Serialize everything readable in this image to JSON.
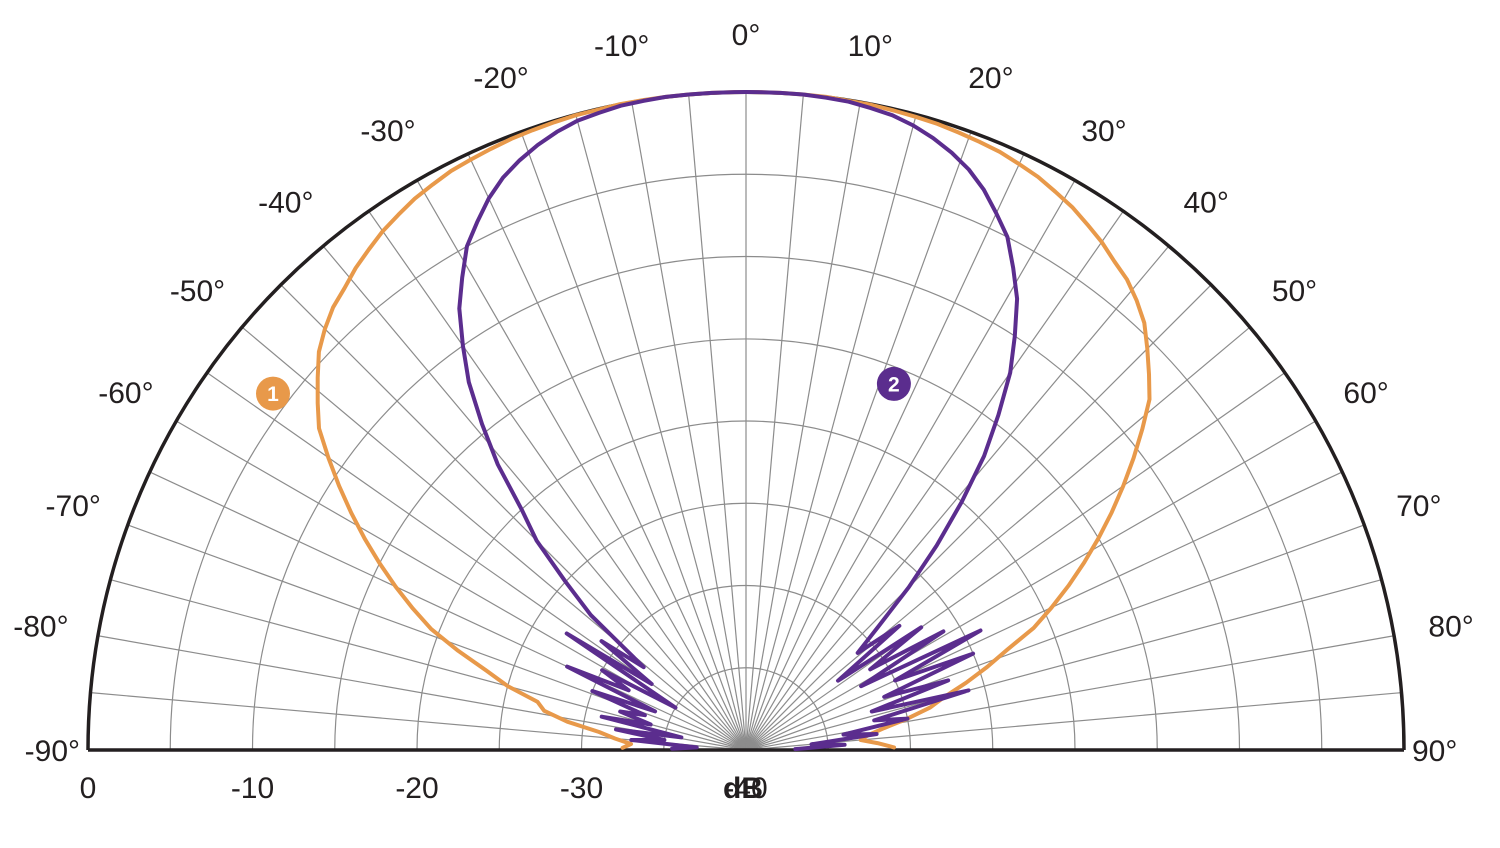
{
  "chart_data": {
    "type": "polar",
    "subtype": "half-polar directivity pattern",
    "radial_unit": "dB",
    "radial_range": [
      -40,
      0
    ],
    "radial_step": 5,
    "angle_range": [
      -90,
      90
    ],
    "angle_step": 10,
    "angle_ticks": [
      "-90°",
      "-80°",
      "-70°",
      "-60°",
      "-50°",
      "-40°",
      "-30°",
      "-20°",
      "-10°",
      "0°",
      "10°",
      "20°",
      "30°",
      "40°",
      "50°",
      "60°",
      "70°",
      "80°",
      "90°"
    ],
    "db_ticks_left": [
      "0",
      "-10",
      "-20",
      "-30",
      "-40"
    ],
    "unit_text": "dB",
    "colors": {
      "frame": "#231f20",
      "grid": "#8c8c8c",
      "series_1": "#e8994a",
      "series_2": "#5b2d8e"
    },
    "series": [
      {
        "name": "1",
        "color": "#e8994a",
        "angles": [
          -89,
          -87,
          -85,
          -83,
          -81,
          -79,
          -77,
          -75,
          -73,
          -71,
          -69,
          -67,
          -65,
          -63,
          -61,
          -59,
          -57,
          -55,
          -53,
          -51,
          -49,
          -47,
          -45,
          -43,
          -41,
          -39,
          -37,
          -35,
          -33,
          -31,
          -29,
          -27,
          -25,
          -23,
          -21,
          -19,
          -17,
          -15,
          -13,
          -11,
          -9,
          -7,
          -5,
          -3,
          -1,
          0,
          1,
          3,
          5,
          7,
          9,
          11,
          13,
          15,
          17,
          19,
          21,
          23,
          25,
          27,
          29,
          31,
          33,
          35,
          37,
          39,
          41,
          43,
          45,
          47,
          49,
          51,
          53,
          55,
          57,
          59,
          61,
          63,
          65,
          67,
          69,
          71,
          73,
          75,
          77,
          79,
          81,
          83,
          85,
          87,
          89
        ],
        "values": [
          -32.5,
          -33,
          -32,
          -31,
          -29,
          -27.5,
          -27,
          -25,
          -23.5,
          -21.5,
          -19.5,
          -18,
          -16.5,
          -15,
          -13.5,
          -12,
          -10.5,
          -9,
          -7.5,
          -6.5,
          -5.5,
          -4.5,
          -3.8,
          -3.2,
          -2.8,
          -2.3,
          -1.9,
          -1.5,
          -1.2,
          -0.9,
          -0.7,
          -0.5,
          -0.4,
          -0.3,
          -0.2,
          -0.15,
          -0.1,
          -0.05,
          -0.05,
          0,
          0,
          0,
          0,
          0,
          0,
          0,
          0,
          0,
          0,
          0,
          -0.05,
          -0.05,
          -0.1,
          -0.15,
          -0.2,
          -0.3,
          -0.4,
          -0.5,
          -0.7,
          -0.9,
          -1.2,
          -1.5,
          -1.9,
          -2.3,
          -2.8,
          -3.2,
          -3.8,
          -4.5,
          -5.5,
          -6.5,
          -7.5,
          -9,
          -10.5,
          -12,
          -13.5,
          -15,
          -16.5,
          -18,
          -19.5,
          -21,
          -23,
          -24.5,
          -26,
          -27.5,
          -28.5,
          -30,
          -31.5,
          -32.5,
          -33,
          -32,
          -31
        ]
      },
      {
        "name": "2",
        "color": "#5b2d8e",
        "angles": [
          -89,
          -87,
          -85,
          -83,
          -81,
          -79,
          -77,
          -75,
          -73,
          -71,
          -69,
          -67,
          -65,
          -63,
          -61,
          -59,
          -57,
          -55,
          -53,
          -51,
          -49,
          -47,
          -45,
          -43,
          -41,
          -39,
          -37,
          -35,
          -33,
          -31,
          -29,
          -27,
          -25,
          -23,
          -21,
          -19,
          -17,
          -15,
          -13,
          -11,
          -9,
          -7,
          -5,
          -3,
          -1,
          0,
          1,
          3,
          5,
          7,
          9,
          11,
          13,
          15,
          17,
          19,
          21,
          23,
          25,
          27,
          29,
          31,
          33,
          35,
          37,
          39,
          41,
          43,
          45,
          47,
          49,
          51,
          53,
          55,
          57,
          59,
          61,
          63,
          65,
          67,
          69,
          71,
          73,
          75,
          77,
          79,
          81,
          83,
          85,
          87,
          89
        ],
        "values": [
          -35.5,
          -37,
          -33,
          -35,
          -32,
          -36,
          -31,
          -34,
          -32,
          -33.5,
          -30,
          -34,
          -28,
          -32,
          -30,
          -35,
          -27,
          -33,
          -29,
          -32,
          -27.5,
          -25,
          -22,
          -20,
          -17,
          -14.5,
          -12,
          -10,
          -8,
          -6.5,
          -5,
          -4,
          -3,
          -2.2,
          -1.6,
          -1.1,
          -0.7,
          -0.4,
          -0.25,
          -0.1,
          -0.05,
          0,
          0,
          0,
          0,
          0,
          0,
          0,
          0,
          -0.05,
          -0.1,
          -0.25,
          -0.4,
          -0.7,
          -1.1,
          -1.6,
          -2.2,
          -3,
          -4,
          -5,
          -6.5,
          -8,
          -10,
          -12,
          -14.5,
          -17,
          -20,
          -23,
          -26,
          -29,
          -31,
          -28,
          -33,
          -27,
          -31,
          -26,
          -32,
          -24,
          -30,
          -25,
          -31,
          -27,
          -32,
          -26,
          -32,
          -30,
          -34,
          -32,
          -36,
          -34,
          -37
        ]
      }
    ],
    "markers": [
      {
        "series": "1",
        "label": "1",
        "angle": -53,
        "db": -4
      },
      {
        "series": "2",
        "label": "2",
        "angle": 22,
        "db": -16
      }
    ]
  }
}
